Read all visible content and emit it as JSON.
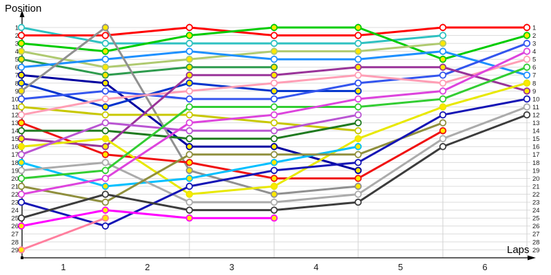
{
  "y_axis_title": "Position",
  "x_axis_title": "Laps",
  "x_tick_labels": [
    "1",
    "2",
    "3",
    "4",
    "5",
    "6"
  ],
  "left_axis_labels": [
    "1",
    "2",
    "3",
    "4",
    "5",
    "6",
    "7",
    "8",
    "9",
    "10",
    "11",
    "12",
    "13",
    "14",
    "15",
    "16",
    "17",
    "18",
    "19",
    "20",
    "21",
    "22",
    "23",
    "24",
    "25",
    "26",
    "27",
    "28",
    "29"
  ],
  "right_axis_labels": [
    "1",
    "2",
    "3",
    "4",
    "5",
    "6",
    "7",
    "8",
    "9",
    "10",
    "11",
    "12",
    "13",
    "14",
    "15",
    "16",
    "17",
    "18",
    "19",
    "20",
    "21",
    "22",
    "23",
    "24",
    "25",
    "26",
    "27",
    "28",
    "29"
  ],
  "colors": {
    "background": "#FFFFFF",
    "axis": "#000000",
    "h_grid": "#DCDCDC",
    "v_grid": "#D2D2D2",
    "marker_fill_yellow": "#FFE800",
    "marker_fill_white": "#FFFFFF"
  },
  "chart_data": {
    "type": "line",
    "title": "",
    "xlabel": "Laps",
    "ylabel": "Position",
    "x_columns": [
      0,
      1,
      2,
      3,
      4,
      5,
      6
    ],
    "x_tick_labels": [
      "1",
      "2",
      "3",
      "4",
      "5",
      "6"
    ],
    "ylim": [
      1,
      29
    ],
    "y_inverted": true,
    "grid": true,
    "legend": "none",
    "note": "Race lap chart: position of each car at start and after each lap; null = retired/no data",
    "series": [
      {
        "id": "turquoise",
        "color": "#2FC1C1",
        "marker_fill": "white",
        "positions": [
          1,
          3,
          3,
          3,
          3,
          2,
          null
        ]
      },
      {
        "id": "red-1",
        "color": "#FF0000",
        "marker_fill": "white",
        "positions": [
          2,
          2,
          1,
          2,
          2,
          1,
          1
        ]
      },
      {
        "id": "green-1",
        "color": "#00CC00",
        "marker_fill": "yellow",
        "positions": [
          3,
          4,
          2,
          1,
          1,
          5,
          2
        ]
      },
      {
        "id": "yellowgreen",
        "color": "#AFCA70",
        "marker_fill": "yellow",
        "positions": [
          4,
          6,
          5,
          4,
          4,
          3,
          null
        ]
      },
      {
        "id": "green-2",
        "color": "#2E9B4E",
        "marker_fill": "yellow",
        "positions": [
          5,
          7,
          6,
          6,
          null,
          null,
          null
        ]
      },
      {
        "id": "dodgerblue",
        "color": "#1E90FF",
        "marker_fill": "white",
        "positions": [
          6,
          5,
          4,
          5,
          5,
          4,
          7
        ]
      },
      {
        "id": "navy-1",
        "color": "#0000A0",
        "marker_fill": "yellow",
        "positions": [
          7,
          8,
          16,
          16,
          19,
          null,
          null
        ]
      },
      {
        "id": "blue-2",
        "color": "#0033CC",
        "marker_fill": "yellow",
        "positions": [
          8,
          11,
          8,
          9,
          9,
          null,
          null
        ]
      },
      {
        "id": "gray-1",
        "color": "#909090",
        "marker_fill": "yellow",
        "positions": [
          9,
          1,
          19,
          22,
          21,
          null,
          null
        ]
      },
      {
        "id": "royalblue",
        "color": "#3355EE",
        "marker_fill": "white",
        "positions": [
          10,
          9,
          10,
          10,
          8,
          7,
          3
        ]
      },
      {
        "id": "darkyellow",
        "color": "#C8C800",
        "marker_fill": "white",
        "positions": [
          11,
          12,
          12,
          13,
          14,
          null,
          null
        ]
      },
      {
        "id": "pink-1",
        "color": "#FF9EB5",
        "marker_fill": "white",
        "positions": [
          12,
          10,
          9,
          8,
          7,
          8,
          5
        ]
      },
      {
        "id": "red-2",
        "color": "#F01010",
        "marker_fill": "yellow",
        "positions": [
          13,
          17,
          18,
          20,
          20,
          14,
          null
        ]
      },
      {
        "id": "darkgreen",
        "color": "#1F7A1F",
        "marker_fill": "white",
        "positions": [
          14,
          14,
          15,
          15,
          13,
          null,
          null
        ]
      },
      {
        "id": "purple",
        "color": "#993399",
        "marker_fill": "yellow",
        "positions": [
          15,
          16,
          7,
          7,
          6,
          6,
          9
        ]
      },
      {
        "id": "yellow",
        "color": "#E8E800",
        "marker_fill": "yellow",
        "positions": [
          16,
          15,
          22,
          21,
          15,
          11,
          8
        ]
      },
      {
        "id": "violet",
        "color": "#BA55D3",
        "marker_fill": "white",
        "positions": [
          17,
          13,
          14,
          14,
          12,
          null,
          null
        ]
      },
      {
        "id": "deepskyblue",
        "color": "#00BFFF",
        "marker_fill": "yellow",
        "positions": [
          18,
          21,
          20,
          18,
          16,
          null,
          null
        ]
      },
      {
        "id": "gray-2",
        "color": "#ABABAB",
        "marker_fill": "white",
        "positions": [
          19,
          18,
          23,
          23,
          22,
          15,
          11
        ]
      },
      {
        "id": "green-3",
        "color": "#32CD32",
        "marker_fill": "white",
        "positions": [
          20,
          19,
          11,
          11,
          11,
          10,
          6
        ]
      },
      {
        "id": "darkkhaki",
        "color": "#8F8F3D",
        "marker_fill": "white",
        "positions": [
          21,
          23,
          17,
          17,
          17,
          13,
          null
        ]
      },
      {
        "id": "magenta-1",
        "color": "#DD44DD",
        "marker_fill": "white",
        "positions": [
          22,
          20,
          13,
          12,
          10,
          9,
          4
        ]
      },
      {
        "id": "navy-2",
        "color": "#1515B5",
        "marker_fill": "white",
        "positions": [
          23,
          26,
          21,
          19,
          18,
          12,
          10
        ]
      },
      {
        "id": "black",
        "color": "#3C3C3C",
        "marker_fill": "white",
        "positions": [
          25,
          22,
          24,
          24,
          23,
          16,
          12
        ]
      },
      {
        "id": "magenta-2",
        "color": "#FF00FF",
        "marker_fill": "yellow",
        "positions": [
          26,
          24,
          25,
          25,
          null,
          null,
          null
        ]
      },
      {
        "id": "pink-2",
        "color": "#FF7F9E",
        "marker_fill": "yellow",
        "positions": [
          29,
          25,
          null,
          null,
          null,
          null,
          null
        ]
      }
    ]
  }
}
